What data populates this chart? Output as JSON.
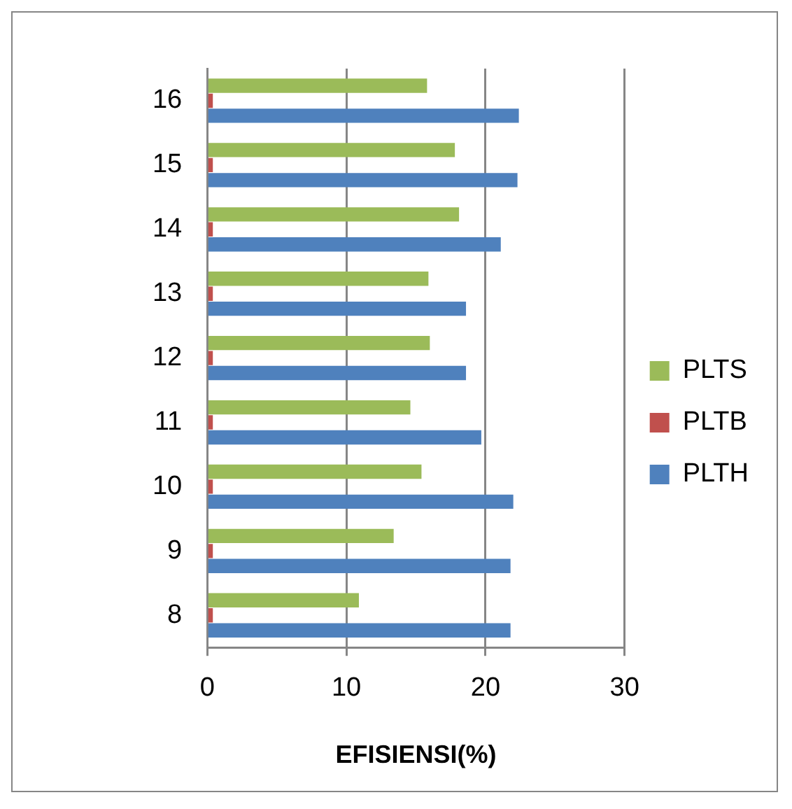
{
  "chart_data": {
    "type": "bar",
    "orientation": "horizontal",
    "xlabel": "EFISIENSI(%)",
    "categories": [
      "16",
      "15",
      "14",
      "13",
      "12",
      "11",
      "10",
      "9",
      "8"
    ],
    "series": [
      {
        "name": "PLTS",
        "color": "#9bbb59",
        "values": [
          15.8,
          17.8,
          18.1,
          15.9,
          16.0,
          14.6,
          15.4,
          13.4,
          10.9
        ]
      },
      {
        "name": "PLTB",
        "color": "#c0504d",
        "values": [
          0.4,
          0.4,
          0.4,
          0.4,
          0.4,
          0.4,
          0.4,
          0.4,
          0.4
        ]
      },
      {
        "name": "PLTH",
        "color": "#4f81bd",
        "values": [
          22.4,
          22.3,
          21.1,
          18.6,
          18.6,
          19.7,
          22.0,
          21.8,
          21.8
        ]
      }
    ],
    "xlim": [
      0,
      30
    ],
    "xticks": [
      0,
      10,
      20,
      30
    ],
    "grid": "x",
    "legend": "right"
  }
}
